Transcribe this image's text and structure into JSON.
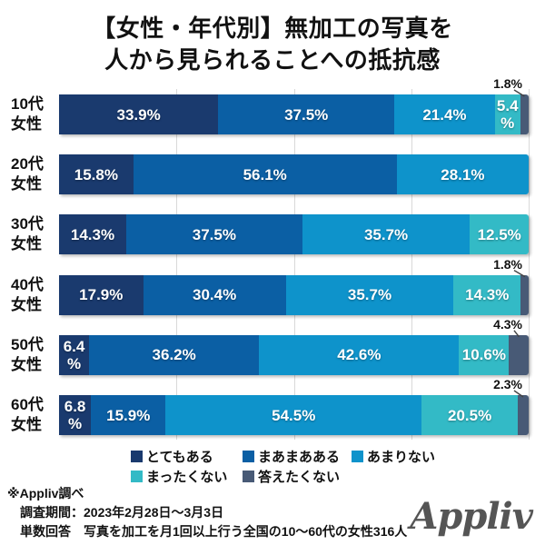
{
  "title": {
    "line1": "【女性・年代別】無加工の写真を",
    "line2": "人から見られることへの抵抗感"
  },
  "chart_data": {
    "type": "bar",
    "stacked": true,
    "orientation": "horizontal",
    "title": "【女性・年代別】無加工の写真を人から見られることへの抵抗感",
    "categories": [
      "10代\n女性",
      "20代\n女性",
      "30代\n女性",
      "40代\n女性",
      "50代\n女性",
      "60代\n女性"
    ],
    "series": [
      {
        "name": "とてもある",
        "color": "#1A3A6E",
        "values": [
          33.9,
          15.8,
          14.3,
          17.9,
          6.4,
          6.8
        ]
      },
      {
        "name": "まあまあある",
        "color": "#0B5FA4",
        "values": [
          37.5,
          56.1,
          37.5,
          30.4,
          36.2,
          15.9
        ]
      },
      {
        "name": "あまりない",
        "color": "#0E93CB",
        "values": [
          21.4,
          28.1,
          35.7,
          35.7,
          42.6,
          54.5
        ]
      },
      {
        "name": "まったくない",
        "color": "#33BAC6",
        "values": [
          5.4,
          0,
          12.5,
          14.3,
          10.6,
          20.5
        ]
      },
      {
        "name": "答えたくない",
        "color": "#485A76",
        "values": [
          1.8,
          0,
          0,
          1.8,
          4.3,
          2.3
        ]
      }
    ],
    "callout_series_index": 4,
    "callout_labels": [
      "1.8%",
      null,
      null,
      "1.8%",
      "4.3%",
      "2.3%"
    ],
    "xlim": [
      0,
      100
    ],
    "gridlines_pct": [
      25,
      50,
      75,
      100
    ],
    "value_suffix": "%",
    "legend_position": "bottom",
    "legend_rows": [
      [
        "とてもある",
        "まあまあある",
        "あまりない"
      ],
      [
        "まったくない",
        "答えたくない"
      ]
    ]
  },
  "footer": {
    "source": "※Appliv調べ",
    "period": "調査期間：2023年2月28日〜3月3日",
    "method": "単数回答　写真を加工を月1回以上行う全国の10〜60代の女性316人",
    "logo": "Appliv"
  }
}
